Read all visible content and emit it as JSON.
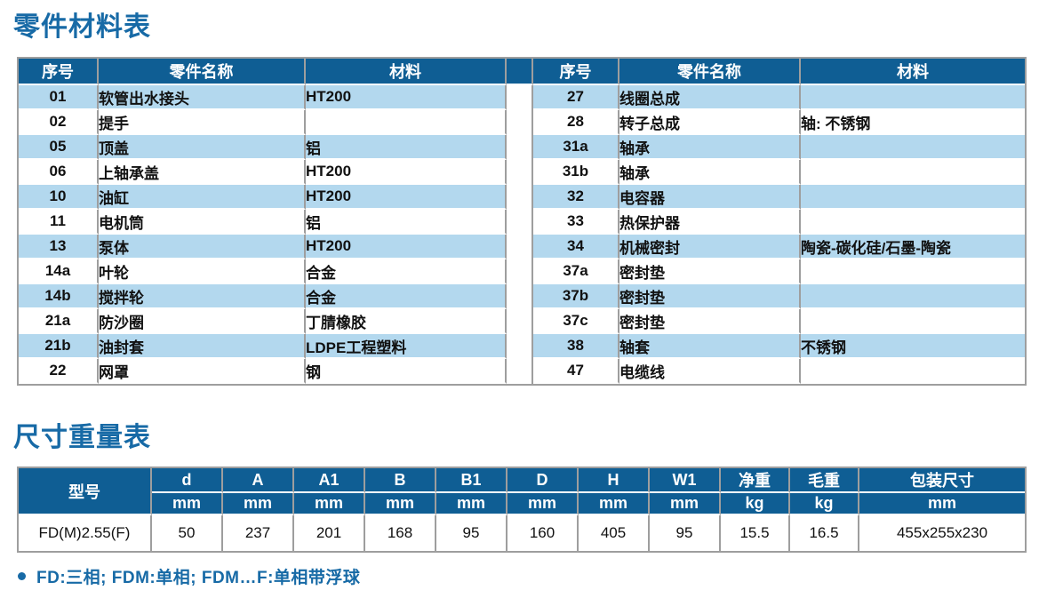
{
  "colors": {
    "header_blue": "#0f5e94",
    "row_blue": "#b3d8ee",
    "title_blue": "#176aa6",
    "border_grey": "#9e9e9e"
  },
  "parts_table": {
    "title": "零件材料表",
    "columns": {
      "no": "序号",
      "name": "零件名称",
      "material": "材料"
    },
    "left_rows": [
      {
        "no": "01",
        "name": "软管出水接头",
        "material": "HT200"
      },
      {
        "no": "02",
        "name": "提手",
        "material": ""
      },
      {
        "no": "05",
        "name": "顶盖",
        "material": "铝"
      },
      {
        "no": "06",
        "name": "上轴承盖",
        "material": "HT200"
      },
      {
        "no": "10",
        "name": "油缸",
        "material": "HT200"
      },
      {
        "no": "11",
        "name": "电机筒",
        "material": "铝"
      },
      {
        "no": "13",
        "name": "泵体",
        "material": "HT200"
      },
      {
        "no": "14a",
        "name": "叶轮",
        "material": "合金"
      },
      {
        "no": "14b",
        "name": "搅拌轮",
        "material": "合金"
      },
      {
        "no": "21a",
        "name": "防沙圈",
        "material": "丁腈橡胶"
      },
      {
        "no": "21b",
        "name": "油封套",
        "material": "LDPE工程塑料"
      },
      {
        "no": "22",
        "name": "网罩",
        "material": "钢"
      }
    ],
    "right_rows": [
      {
        "no": "27",
        "name": "线圈总成",
        "material": ""
      },
      {
        "no": "28",
        "name": "转子总成",
        "material": "轴: 不锈钢"
      },
      {
        "no": "31a",
        "name": "轴承",
        "material": ""
      },
      {
        "no": "31b",
        "name": "轴承",
        "material": ""
      },
      {
        "no": "32",
        "name": "电容器",
        "material": ""
      },
      {
        "no": "33",
        "name": "热保护器",
        "material": ""
      },
      {
        "no": "34",
        "name": "机械密封",
        "material": "陶瓷-碳化硅/石墨-陶瓷"
      },
      {
        "no": "37a",
        "name": "密封垫",
        "material": ""
      },
      {
        "no": "37b",
        "name": "密封垫",
        "material": ""
      },
      {
        "no": "37c",
        "name": "密封垫",
        "material": ""
      },
      {
        "no": "38",
        "name": "轴套",
        "material": "不锈钢"
      },
      {
        "no": "47",
        "name": "电缆线",
        "material": ""
      }
    ]
  },
  "dimensions_table": {
    "title": "尺寸重量表",
    "model_header": "型号",
    "columns": [
      {
        "label": "d",
        "unit": "mm"
      },
      {
        "label": "A",
        "unit": "mm"
      },
      {
        "label": "A1",
        "unit": "mm"
      },
      {
        "label": "B",
        "unit": "mm"
      },
      {
        "label": "B1",
        "unit": "mm"
      },
      {
        "label": "D",
        "unit": "mm"
      },
      {
        "label": "H",
        "unit": "mm"
      },
      {
        "label": "W1",
        "unit": "mm"
      },
      {
        "label": "净重",
        "unit": "kg"
      },
      {
        "label": "毛重",
        "unit": "kg"
      },
      {
        "label": "包装尺寸",
        "unit": "mm"
      }
    ],
    "row": {
      "model": "FD(M)2.55(F)",
      "values": [
        "50",
        "237",
        "201",
        "168",
        "95",
        "160",
        "405",
        "95",
        "15.5",
        "16.5",
        "455x255x230"
      ]
    }
  },
  "footnote": {
    "text": "FD:三相; FDM:单相; FDM…F:单相带浮球"
  }
}
